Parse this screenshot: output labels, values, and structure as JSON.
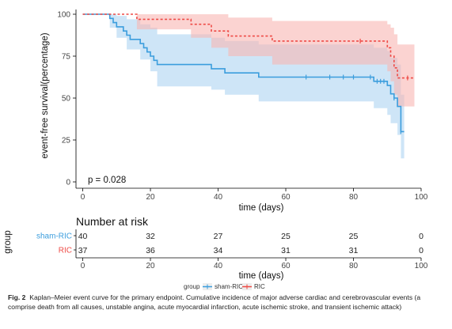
{
  "chart_data": {
    "type": "line",
    "subtype": "kaplan-meier",
    "xlabel": "time (days)",
    "ylabel": "event-free survival(percentage)",
    "xlim": [
      -2,
      100
    ],
    "ylim": [
      0,
      100
    ],
    "xticks": [
      "0",
      "20",
      "40",
      "60",
      "80",
      "100"
    ],
    "yticks": [
      "0",
      "25",
      "50",
      "75",
      "100"
    ],
    "annotation": "p = 0.028",
    "legend_title": "group",
    "legend_position": "bottom",
    "series": [
      {
        "name": "sham-RIC",
        "color": "#3b9ddd",
        "band_color": "#aed4f1",
        "linestyle": "solid",
        "steps": [
          [
            0,
            100
          ],
          [
            8,
            97.5
          ],
          [
            9,
            95
          ],
          [
            10,
            92.5
          ],
          [
            12,
            90
          ],
          [
            13,
            87.5
          ],
          [
            14,
            85
          ],
          [
            17,
            82.5
          ],
          [
            18,
            80
          ],
          [
            19,
            77.5
          ],
          [
            20,
            75
          ],
          [
            21,
            72.5
          ],
          [
            22,
            70
          ],
          [
            38,
            67.5
          ],
          [
            42,
            65
          ],
          [
            52,
            62.5
          ],
          [
            86,
            60
          ],
          [
            90,
            57.5
          ],
          [
            91,
            52.5
          ],
          [
            92,
            50
          ],
          [
            93,
            45
          ],
          [
            94,
            30
          ],
          [
            95,
            30
          ]
        ],
        "upper": [
          [
            0,
            100
          ],
          [
            8,
            100
          ],
          [
            10,
            99
          ],
          [
            13,
            97
          ],
          [
            17,
            94
          ],
          [
            20,
            92
          ],
          [
            22,
            88
          ],
          [
            38,
            86
          ],
          [
            42,
            84
          ],
          [
            52,
            82
          ],
          [
            86,
            80
          ],
          [
            90,
            78
          ],
          [
            91,
            74
          ],
          [
            93,
            70
          ],
          [
            94,
            52
          ],
          [
            95,
            52
          ]
        ],
        "lower": [
          [
            0,
            100
          ],
          [
            8,
            92
          ],
          [
            10,
            86
          ],
          [
            13,
            79
          ],
          [
            17,
            73
          ],
          [
            20,
            66
          ],
          [
            22,
            57
          ],
          [
            38,
            55
          ],
          [
            42,
            52
          ],
          [
            52,
            48
          ],
          [
            86,
            44
          ],
          [
            90,
            40
          ],
          [
            91,
            35
          ],
          [
            93,
            28
          ],
          [
            94,
            14
          ],
          [
            95,
            14
          ]
        ],
        "censored_x": [
          66,
          73,
          77,
          80,
          85,
          87,
          88,
          89,
          92,
          94
        ]
      },
      {
        "name": "RIC",
        "color": "#ee4a45",
        "band_color": "#f8b5b3",
        "linestyle": "dashed",
        "steps": [
          [
            0,
            100
          ],
          [
            15,
            100
          ],
          [
            16,
            97
          ],
          [
            32,
            94
          ],
          [
            38,
            90
          ],
          [
            43,
            87
          ],
          [
            56,
            84
          ],
          [
            90,
            80
          ],
          [
            91,
            75
          ],
          [
            92,
            68
          ],
          [
            93,
            62
          ],
          [
            98,
            62
          ]
        ],
        "upper": [
          [
            0,
            100
          ],
          [
            15,
            100
          ],
          [
            16,
            100
          ],
          [
            32,
            100
          ],
          [
            38,
            100
          ],
          [
            43,
            98
          ],
          [
            56,
            96
          ],
          [
            90,
            94
          ],
          [
            91,
            92
          ],
          [
            92,
            88
          ],
          [
            93,
            82
          ],
          [
            98,
            82
          ]
        ],
        "lower": [
          [
            0,
            100
          ],
          [
            15,
            100
          ],
          [
            16,
            91
          ],
          [
            32,
            86
          ],
          [
            38,
            80
          ],
          [
            43,
            75
          ],
          [
            56,
            70
          ],
          [
            90,
            66
          ],
          [
            91,
            60
          ],
          [
            92,
            52
          ],
          [
            93,
            45
          ],
          [
            98,
            45
          ]
        ],
        "censored_x": [
          82,
          96
        ]
      }
    ]
  },
  "risk_table": {
    "title": "Number at risk",
    "group_axis_label": "group",
    "xlabel": "time (days)",
    "xticks": [
      "0",
      "20",
      "40",
      "60",
      "80",
      "100"
    ],
    "rows": [
      {
        "name": "sham-RIC",
        "color": "#3b9ddd",
        "values": [
          "40",
          "32",
          "27",
          "25",
          "25",
          "0"
        ]
      },
      {
        "name": "RIC",
        "color": "#ee4a45",
        "values": [
          "37",
          "36",
          "34",
          "31",
          "31",
          "0"
        ]
      }
    ]
  },
  "legend": {
    "title": "group",
    "items": [
      {
        "label": "sham-RIC",
        "color": "#3b9ddd"
      },
      {
        "label": "RIC",
        "color": "#ee4a45"
      }
    ]
  },
  "caption": {
    "label": "Fig. 2",
    "text": "Kaplan–Meier event curve for the primary endpoint. Cumulative incidence of major adverse cardiac and cerebrovascular events (a comprise death from all causes, unstable angina, acute myocardial infarction, acute ischemic stroke, and transient ischemic attack)"
  }
}
